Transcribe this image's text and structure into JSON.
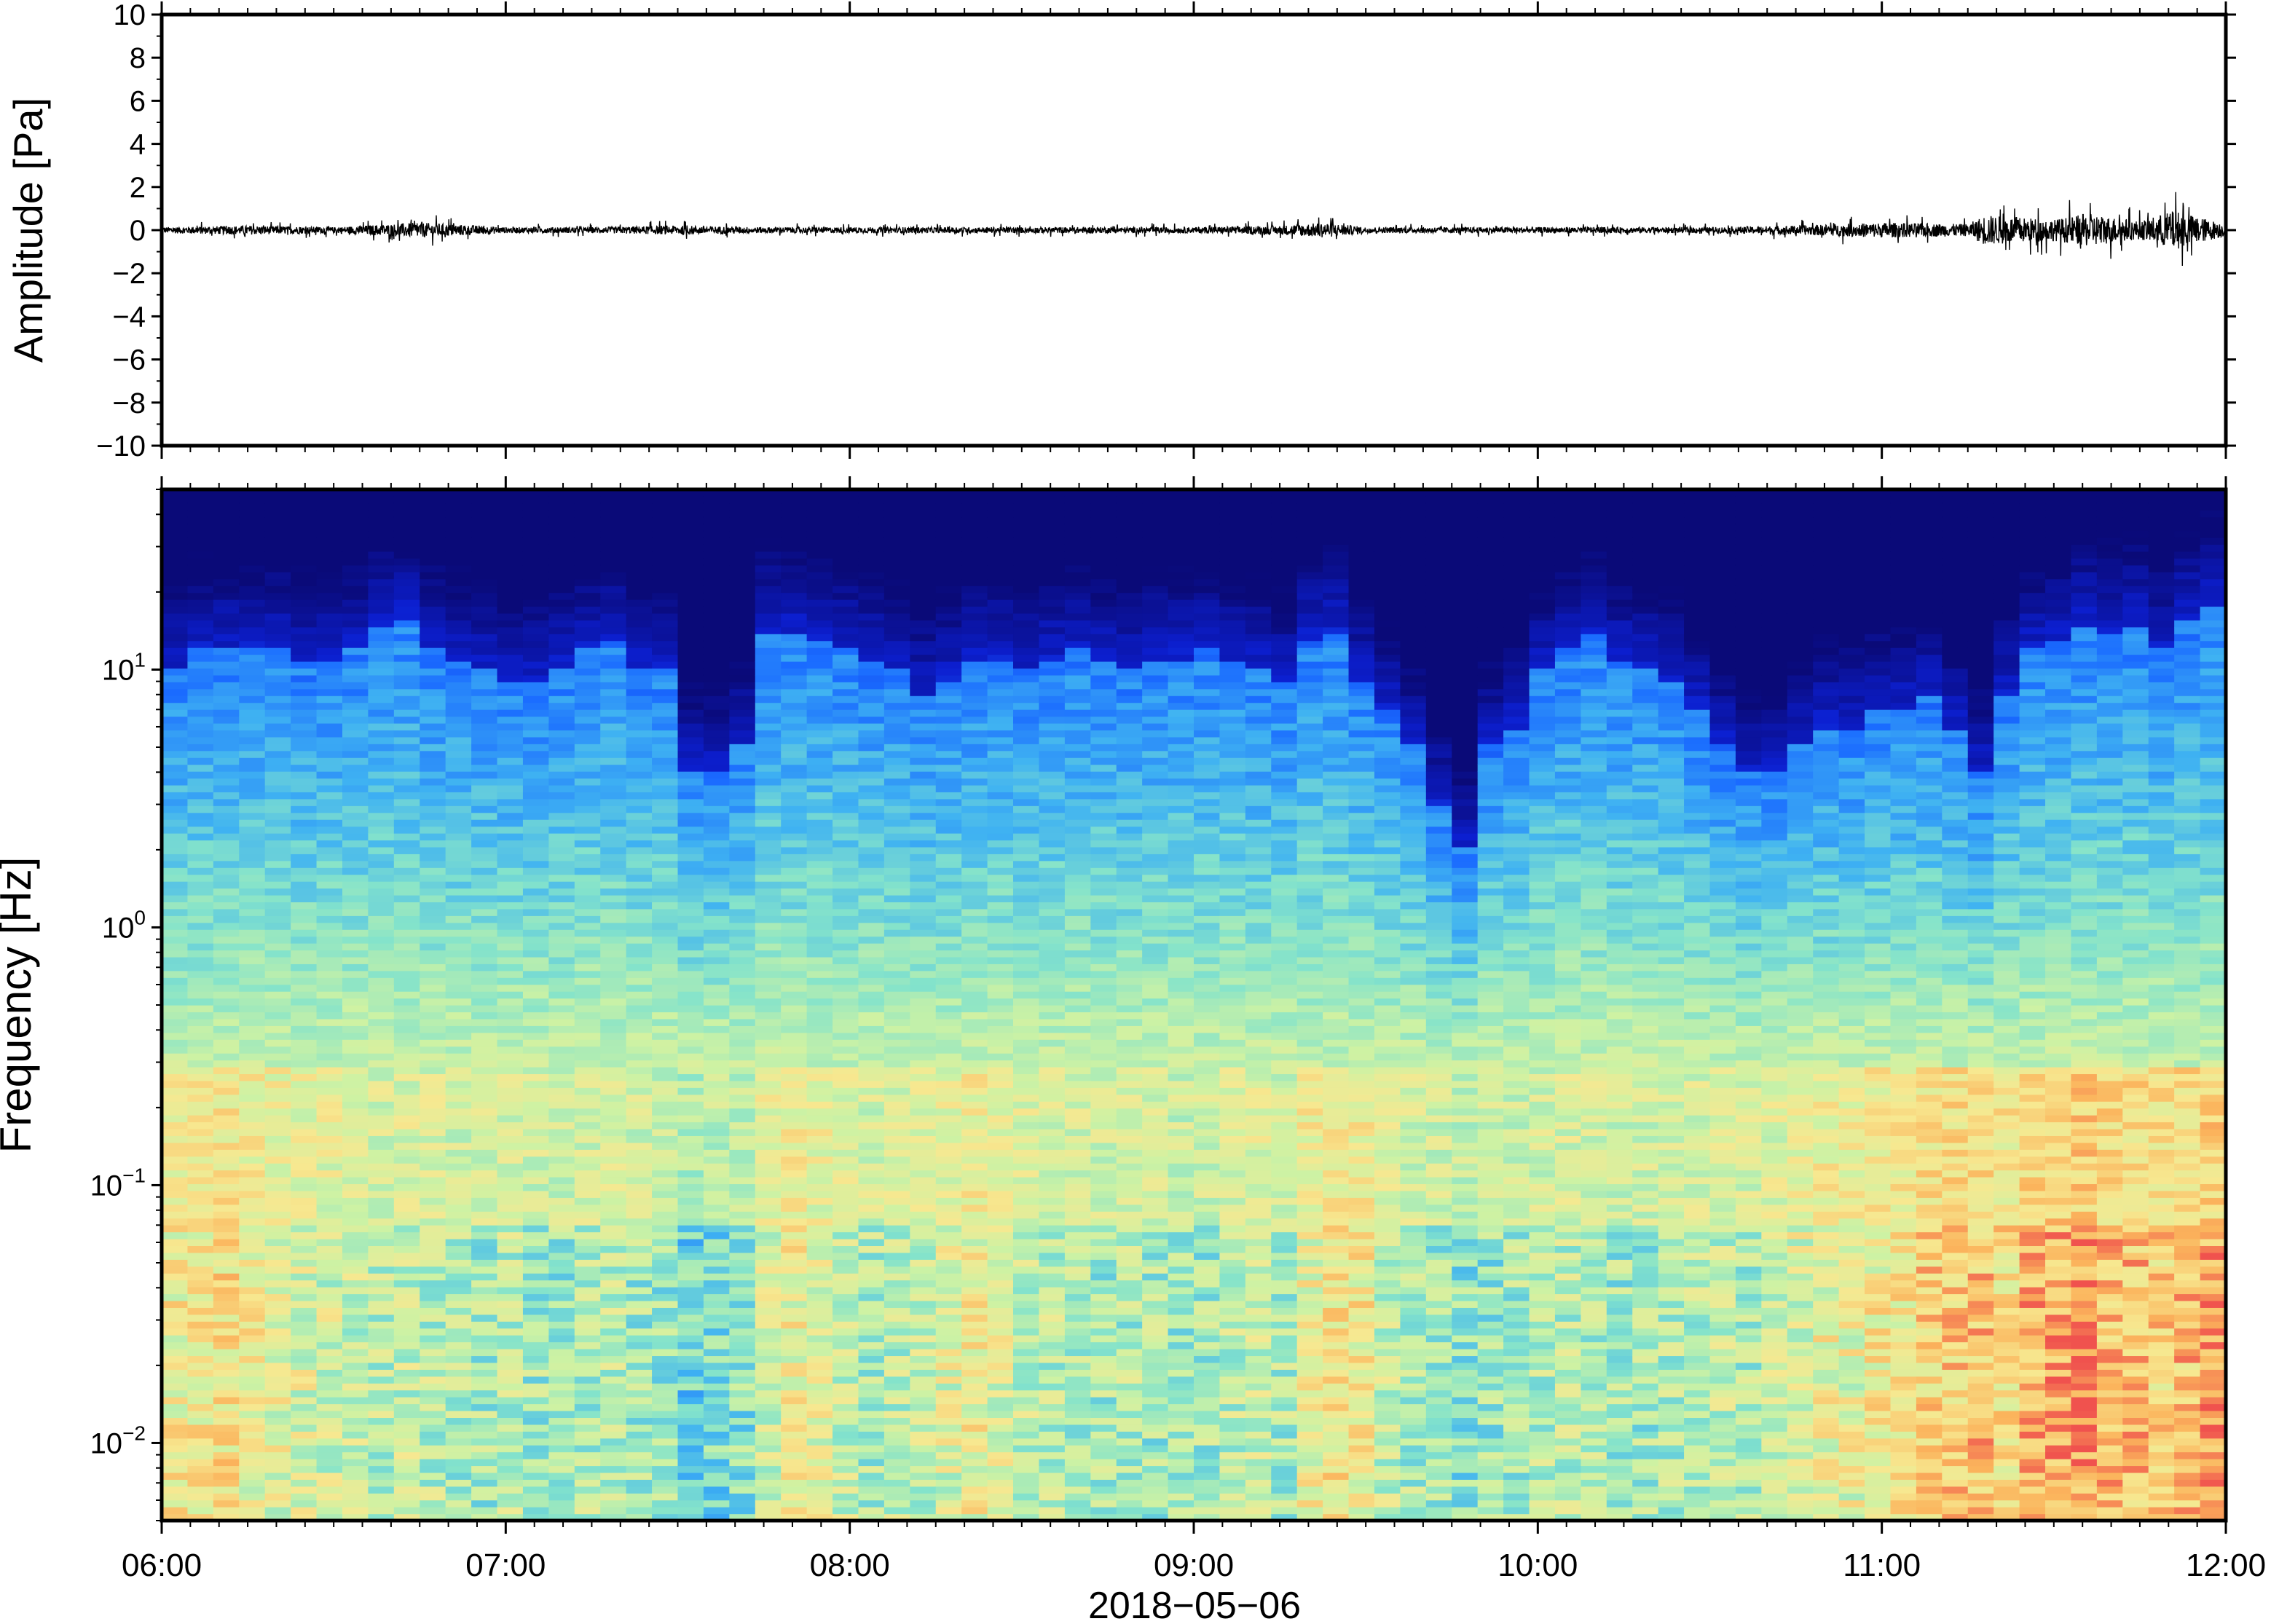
{
  "chart_data": [
    {
      "type": "line",
      "ylabel": "Amplitude [Pa]",
      "ylim": [
        -10,
        10
      ],
      "yticks": [
        10,
        8,
        6,
        4,
        2,
        0,
        -2,
        -4,
        -6,
        -8,
        -10
      ],
      "ytick_labels": [
        "10",
        "8",
        "6",
        "4",
        "2",
        "0",
        "−2",
        "−4",
        "−6",
        "−8",
        "−10"
      ],
      "xlim_hours": [
        6,
        12
      ],
      "series": [
        {
          "x_hours": [
            6.0,
            6.25,
            6.5,
            6.75,
            7.0,
            7.25,
            7.5,
            7.75,
            8.0,
            8.25,
            8.5,
            8.75,
            9.0,
            9.25,
            9.38,
            9.5,
            9.75,
            10.0,
            10.25,
            10.5,
            10.75,
            11.0,
            11.25,
            11.3,
            11.5,
            11.6,
            11.75,
            11.85,
            12.0
          ],
          "envelope_pa": [
            0.2,
            0.3,
            0.2,
            0.5,
            0.2,
            0.2,
            0.3,
            0.2,
            0.2,
            0.2,
            0.2,
            0.2,
            0.2,
            0.3,
            0.5,
            0.2,
            0.2,
            0.2,
            0.2,
            0.2,
            0.3,
            0.5,
            0.4,
            1.0,
            0.7,
            1.1,
            0.6,
            1.3,
            0.4
          ]
        }
      ]
    },
    {
      "type": "heatmap",
      "ylabel": "Frequency [Hz]",
      "xlabel": "2018−05−06",
      "yscale": "log",
      "ylim": [
        0.005,
        50
      ],
      "yticks": [
        0.01,
        0.1,
        1,
        10
      ],
      "ytick_labels": [
        {
          "base": "10",
          "exp": "−2"
        },
        {
          "base": "10",
          "exp": "−1"
        },
        {
          "base": "10",
          "exp": "0"
        },
        {
          "base": "10",
          "exp": "1"
        }
      ],
      "xlim_hours": [
        6,
        12
      ],
      "xticks_hours": [
        6,
        7,
        8,
        9,
        10,
        11,
        12
      ],
      "xtick_labels": [
        "06:00",
        "07:00",
        "08:00",
        "09:00",
        "10:00",
        "11:00",
        "12:00"
      ],
      "colormap": [
        "#0a0a78",
        "#0c1fd0",
        "#1a6bff",
        "#3fb2f2",
        "#84e3cb",
        "#cdf2a4",
        "#f7e890",
        "#fbb45c",
        "#f0524e"
      ],
      "column_cutoff_hz": [
        10,
        12,
        12,
        12,
        12,
        11,
        11,
        12,
        15,
        16,
        12,
        11,
        10,
        9,
        9,
        10,
        12,
        13,
        10,
        10,
        4,
        4,
        5,
        14,
        14,
        13,
        12,
        11,
        10,
        8,
        9,
        11,
        11,
        10,
        11,
        12,
        11,
        10,
        11,
        11,
        12,
        11,
        10,
        9,
        13,
        14,
        9,
        7,
        5,
        3,
        2,
        5,
        6,
        10,
        12,
        14,
        11,
        10,
        9,
        7,
        5,
        4,
        4,
        5,
        6,
        6,
        7,
        7,
        8,
        6,
        4,
        8,
        12,
        13,
        15,
        14,
        15,
        12,
        16,
        18
      ],
      "column_low_freq_intensity": [
        0.72,
        0.74,
        0.76,
        0.7,
        0.68,
        0.66,
        0.64,
        0.62,
        0.6,
        0.62,
        0.6,
        0.58,
        0.56,
        0.6,
        0.56,
        0.54,
        0.58,
        0.6,
        0.56,
        0.54,
        0.46,
        0.48,
        0.52,
        0.64,
        0.7,
        0.66,
        0.62,
        0.58,
        0.6,
        0.62,
        0.66,
        0.7,
        0.66,
        0.62,
        0.6,
        0.58,
        0.56,
        0.58,
        0.56,
        0.54,
        0.56,
        0.6,
        0.62,
        0.58,
        0.7,
        0.74,
        0.72,
        0.62,
        0.58,
        0.56,
        0.52,
        0.54,
        0.56,
        0.58,
        0.6,
        0.58,
        0.56,
        0.56,
        0.58,
        0.6,
        0.62,
        0.58,
        0.62,
        0.66,
        0.7,
        0.68,
        0.72,
        0.74,
        0.8,
        0.82,
        0.84,
        0.76,
        0.86,
        0.88,
        0.9,
        0.86,
        0.84,
        0.8,
        0.84,
        0.88
      ]
    }
  ]
}
